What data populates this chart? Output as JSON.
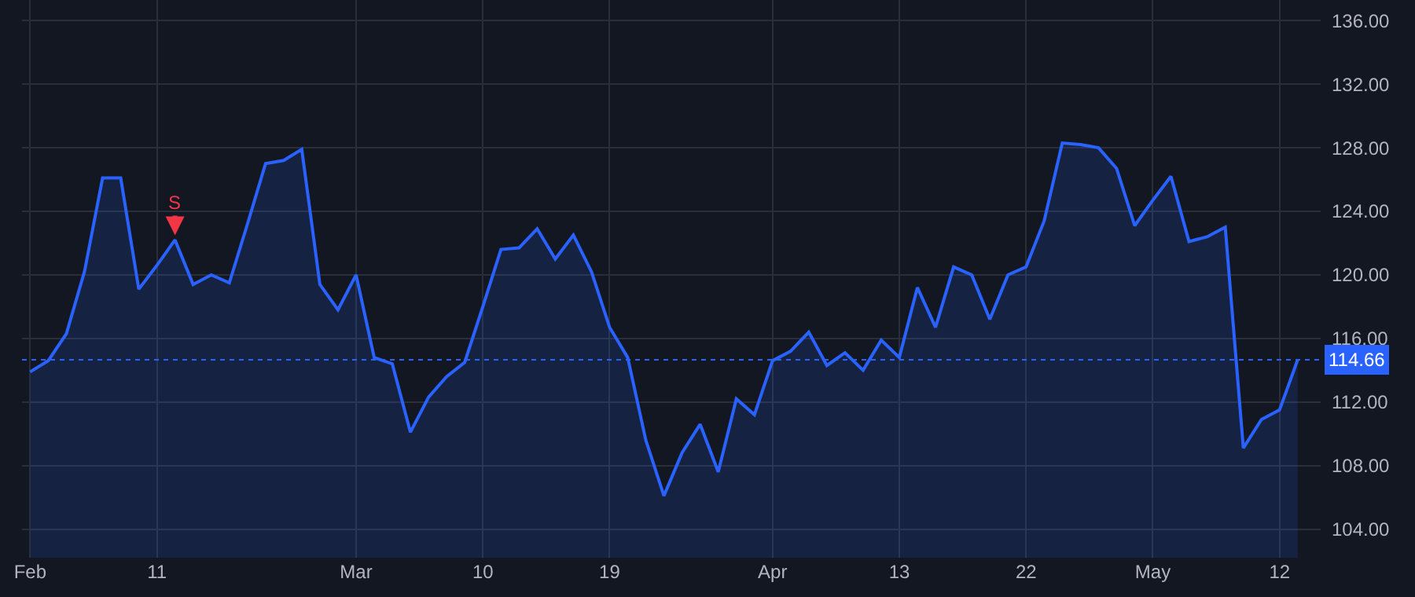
{
  "chart_data": {
    "type": "area",
    "categories": [
      "Feb",
      null,
      null,
      null,
      null,
      null,
      null,
      "11",
      null,
      null,
      null,
      null,
      null,
      null,
      null,
      null,
      null,
      null,
      "Mar",
      null,
      null,
      null,
      null,
      null,
      null,
      "10",
      null,
      null,
      null,
      null,
      null,
      null,
      "19",
      null,
      null,
      null,
      null,
      null,
      null,
      null,
      null,
      "Apr",
      null,
      null,
      null,
      null,
      null,
      null,
      "13",
      null,
      null,
      null,
      null,
      null,
      null,
      "22",
      null,
      null,
      null,
      null,
      null,
      null,
      "May",
      null,
      null,
      null,
      null,
      null,
      null,
      "12",
      null
    ],
    "series": [
      {
        "color": "#2962ff",
        "values": [
          113.9,
          114.6,
          116.3,
          120.2,
          126.1,
          126.1,
          119.1,
          120.6,
          122.2,
          119.4,
          120.0,
          119.5,
          123.2,
          127.0,
          127.2,
          127.9,
          119.4,
          117.8,
          120.0,
          114.8,
          114.4,
          110.1,
          112.3,
          113.6,
          114.5,
          118.0,
          121.6,
          121.7,
          122.9,
          121.0,
          122.5,
          120.2,
          116.7,
          114.8,
          109.6,
          106.1,
          108.8,
          110.6,
          107.6,
          112.2,
          111.2,
          114.6,
          115.2,
          116.4,
          114.3,
          115.1,
          114.0,
          115.9,
          114.8,
          119.2,
          116.7,
          120.5,
          120.0,
          117.2,
          120.0,
          120.5,
          123.4,
          128.3,
          128.2,
          128.0,
          126.7,
          123.1,
          124.7,
          126.2,
          122.1,
          122.4,
          123.0,
          109.1,
          110.9,
          111.5,
          114.66
        ]
      }
    ],
    "ylim": [
      102.2,
      137.3
    ],
    "yticks": [
      {
        "value": 104,
        "label": "104.00"
      },
      {
        "value": 108,
        "label": "108.00"
      },
      {
        "value": 112,
        "label": "112.00"
      },
      {
        "value": 116,
        "label": "116.00"
      },
      {
        "value": 120,
        "label": "120.00"
      },
      {
        "value": 124,
        "label": "124.00"
      },
      {
        "value": 128,
        "label": "128.00"
      },
      {
        "value": 132,
        "label": "132.00"
      },
      {
        "value": 136,
        "label": "136.00"
      }
    ],
    "ref_lines": [
      {
        "axis": "y",
        "value": 114.66,
        "label": "114.66",
        "color": "#2962ff",
        "line_style": "dotted"
      }
    ],
    "annotations": [
      {
        "text": "S",
        "y": 122.2
      }
    ],
    "grid": true,
    "marker": "none",
    "line_style": "solid"
  }
}
